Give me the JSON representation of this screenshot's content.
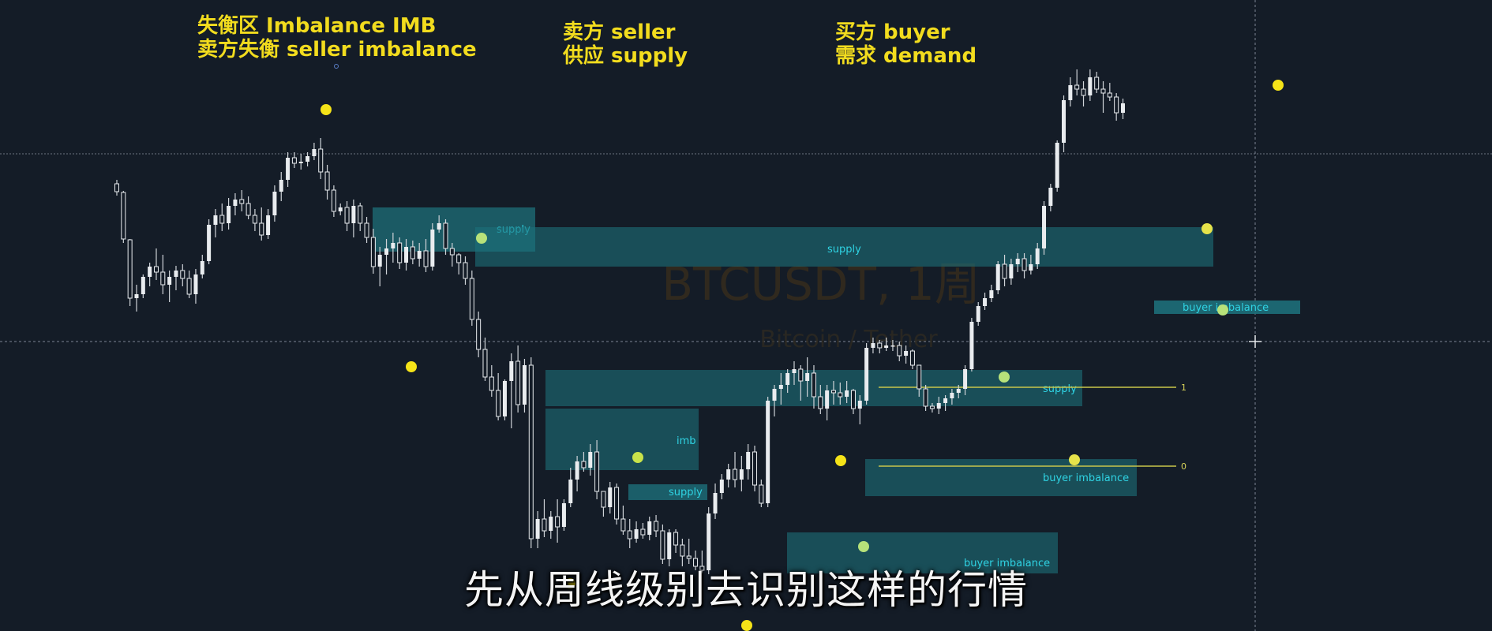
{
  "watermark": {
    "symbol": "BTCUSDT, 1周",
    "description": "Bitcoin / Tether"
  },
  "annotations": {
    "imbalance": {
      "line1": "失衡区 Imbalance IMB",
      "line2": "卖方失衡 seller imbalance"
    },
    "seller": {
      "line1": "卖方  seller",
      "line2": "供应 supply"
    },
    "buyer": {
      "line1": "买方 buyer",
      "line2": "需求 demand"
    }
  },
  "subtitle": "先从周线级别去识别这样的行情",
  "colors": {
    "background": "#141c27",
    "candle": "#e9ecef",
    "wick": "#cfd3d8",
    "zone_fill": "#1d6f7a",
    "zone_label": "#2fd3e3",
    "pivot_yellow": "#f5e318",
    "pivot_green": "#b7e27a",
    "fib_line": "#c9c64a",
    "annotation": "#f2dc1e",
    "crosshair": "#7d8593"
  },
  "zones": [
    {
      "label": "supply"
    },
    {
      "label": "supply"
    },
    {
      "label": "supply"
    },
    {
      "label": "imb"
    },
    {
      "label": "supply"
    },
    {
      "label": "buyer imbalance"
    },
    {
      "label": "buyer imbalance"
    },
    {
      "label": "buyer imbalance"
    }
  ],
  "fib_levels": [
    {
      "label": "1"
    },
    {
      "label": "0"
    }
  ],
  "chart_data": {
    "type": "candlestick",
    "note_units": "relative price units (no price axis visible)",
    "candles": [
      [
        200,
        205,
        185,
        190
      ],
      [
        189,
        191,
        125,
        130
      ],
      [
        129,
        130,
        45,
        55
      ],
      [
        55,
        72,
        38,
        60
      ],
      [
        60,
        85,
        55,
        82
      ],
      [
        82,
        100,
        70,
        95
      ],
      [
        95,
        118,
        78,
        88
      ],
      [
        88,
        110,
        60,
        72
      ],
      [
        72,
        90,
        50,
        82
      ],
      [
        82,
        96,
        65,
        90
      ],
      [
        90,
        98,
        70,
        80
      ],
      [
        80,
        90,
        55,
        60
      ],
      [
        60,
        92,
        48,
        85
      ],
      [
        85,
        110,
        80,
        102
      ],
      [
        102,
        155,
        98,
        148
      ],
      [
        148,
        168,
        132,
        160
      ],
      [
        160,
        175,
        140,
        150
      ],
      [
        150,
        182,
        142,
        172
      ],
      [
        172,
        188,
        160,
        180
      ],
      [
        180,
        192,
        165,
        175
      ],
      [
        175,
        184,
        155,
        160
      ],
      [
        160,
        168,
        140,
        150
      ],
      [
        150,
        170,
        128,
        135
      ],
      [
        135,
        168,
        130,
        160
      ],
      [
        160,
        198,
        152,
        190
      ],
      [
        190,
        215,
        178,
        205
      ],
      [
        205,
        240,
        196,
        233
      ],
      [
        233,
        240,
        220,
        226
      ],
      [
        226,
        238,
        218,
        228
      ],
      [
        228,
        240,
        222,
        235
      ],
      [
        235,
        252,
        230,
        244
      ],
      [
        244,
        258,
        206,
        215
      ],
      [
        215,
        224,
        180,
        192
      ],
      [
        192,
        198,
        158,
        165
      ],
      [
        165,
        175,
        160,
        170
      ],
      [
        170,
        178,
        140,
        150
      ],
      [
        150,
        180,
        132,
        172
      ],
      [
        172,
        176,
        140,
        150
      ],
      [
        150,
        158,
        125,
        132
      ],
      [
        132,
        143,
        86,
        95
      ],
      [
        95,
        120,
        70,
        110
      ],
      [
        110,
        130,
        85,
        118
      ],
      [
        118,
        138,
        100,
        125
      ],
      [
        125,
        132,
        92,
        100
      ],
      [
        100,
        130,
        90,
        120
      ],
      [
        120,
        128,
        98,
        105
      ],
      [
        105,
        125,
        95,
        115
      ],
      [
        115,
        130,
        88,
        95
      ],
      [
        95,
        150,
        90,
        142
      ],
      [
        142,
        160,
        138,
        150
      ],
      [
        150,
        155,
        110,
        118
      ],
      [
        118,
        125,
        95,
        110
      ],
      [
        110,
        112,
        85,
        100
      ],
      [
        100,
        108,
        72,
        80
      ],
      [
        80,
        90,
        20,
        28
      ],
      [
        28,
        38,
        -20,
        -10
      ],
      [
        -10,
        5,
        -50,
        -45
      ],
      [
        -45,
        -30,
        -70,
        -62
      ],
      [
        -62,
        -40,
        -100,
        -95
      ],
      [
        -95,
        -48,
        -100,
        -50
      ],
      [
        -50,
        -15,
        -110,
        -25
      ],
      [
        -25,
        -5,
        -90,
        -80
      ],
      [
        -80,
        -22,
        -90,
        -30
      ],
      [
        -30,
        -20,
        -262,
        -250
      ],
      [
        -250,
        -215,
        -262,
        -225
      ],
      [
        -225,
        -200,
        -248,
        -240
      ],
      [
        -240,
        -215,
        -250,
        -222
      ],
      [
        -222,
        -200,
        -255,
        -235
      ],
      [
        -235,
        -200,
        -240,
        -205
      ],
      [
        -205,
        -160,
        -210,
        -175
      ],
      [
        -175,
        -145,
        -190,
        -152
      ],
      [
        -152,
        -140,
        -165,
        -160
      ],
      [
        -160,
        -130,
        -170,
        -140
      ],
      [
        -140,
        -125,
        -200,
        -190
      ],
      [
        -190,
        -190,
        -222,
        -210
      ],
      [
        -210,
        -178,
        -218,
        -185
      ],
      [
        -185,
        -180,
        -232,
        -225
      ],
      [
        -225,
        -208,
        -245,
        -240
      ],
      [
        -240,
        -225,
        -262,
        -250
      ],
      [
        -250,
        -228,
        -255,
        -238
      ],
      [
        -238,
        -230,
        -250,
        -245
      ],
      [
        -245,
        -222,
        -252,
        -228
      ],
      [
        -228,
        -220,
        -248,
        -240
      ],
      [
        -240,
        -232,
        -282,
        -276
      ],
      [
        -276,
        -238,
        -285,
        -242
      ],
      [
        -242,
        -238,
        -268,
        -258
      ],
      [
        -258,
        -250,
        -285,
        -272
      ],
      [
        -272,
        -250,
        -282,
        -275
      ],
      [
        -275,
        -265,
        -290,
        -285
      ],
      [
        -285,
        -265,
        -295,
        -290
      ],
      [
        -290,
        -210,
        -295,
        -218
      ],
      [
        -218,
        -180,
        -225,
        -192
      ],
      [
        -192,
        -168,
        -200,
        -175
      ],
      [
        -175,
        -155,
        -185,
        -162
      ],
      [
        -162,
        -140,
        -185,
        -175
      ],
      [
        -175,
        -145,
        -190,
        -162
      ],
      [
        -162,
        -130,
        -175,
        -140
      ],
      [
        -140,
        -132,
        -190,
        -182
      ],
      [
        -182,
        -175,
        -210,
        -205
      ],
      [
        -205,
        -70,
        -210,
        -75
      ],
      [
        -75,
        -55,
        -95,
        -60
      ],
      [
        -60,
        -40,
        -80,
        -55
      ],
      [
        -55,
        -35,
        -65,
        -40
      ],
      [
        -40,
        -25,
        -55,
        -35
      ],
      [
        -35,
        -30,
        -75,
        -50
      ],
      [
        -50,
        -20,
        -70,
        -40
      ],
      [
        -40,
        -30,
        -85,
        -70
      ],
      [
        -70,
        -55,
        -92,
        -85
      ],
      [
        -85,
        -55,
        -100,
        -62
      ],
      [
        -62,
        -50,
        -80,
        -65
      ],
      [
        -65,
        -52,
        -80,
        -70
      ],
      [
        -70,
        -50,
        -78,
        -62
      ],
      [
        -62,
        -60,
        -92,
        -85
      ],
      [
        -85,
        -68,
        -105,
        -75
      ],
      [
        -75,
        -2,
        -80,
        -8
      ],
      [
        -8,
        5,
        -15,
        -2
      ],
      [
        -2,
        2,
        -15,
        -8
      ],
      [
        -8,
        5,
        -12,
        -5
      ],
      [
        -5,
        2,
        -12,
        -5
      ],
      [
        -5,
        0,
        -25,
        -18
      ],
      [
        -18,
        -5,
        -28,
        -12
      ],
      [
        -12,
        -10,
        -35,
        -30
      ],
      [
        -30,
        -30,
        -70,
        -60
      ],
      [
        -60,
        -55,
        -88,
        -82
      ],
      [
        -82,
        -78,
        -90,
        -85
      ],
      [
        -85,
        -70,
        -92,
        -78
      ],
      [
        -78,
        -68,
        -88,
        -72
      ],
      [
        -72,
        -60,
        -80,
        -65
      ],
      [
        -65,
        -55,
        -72,
        -60
      ],
      [
        -60,
        -30,
        -68,
        -35
      ],
      [
        -35,
        30,
        -38,
        25
      ],
      [
        25,
        50,
        20,
        45
      ],
      [
        45,
        62,
        40,
        55
      ],
      [
        55,
        72,
        50,
        65
      ],
      [
        65,
        102,
        60,
        98
      ],
      [
        98,
        110,
        70,
        80
      ],
      [
        80,
        105,
        72,
        98
      ],
      [
        98,
        112,
        88,
        105
      ],
      [
        105,
        112,
        80,
        90
      ],
      [
        90,
        110,
        85,
        98
      ],
      [
        98,
        125,
        92,
        118
      ],
      [
        118,
        178,
        110,
        172
      ],
      [
        172,
        200,
        165,
        195
      ],
      [
        195,
        255,
        190,
        252
      ],
      [
        252,
        312,
        240,
        306
      ],
      [
        306,
        335,
        298,
        325
      ],
      [
        325,
        345,
        312,
        320
      ],
      [
        320,
        330,
        298,
        312
      ],
      [
        312,
        345,
        305,
        335
      ],
      [
        335,
        342,
        315,
        320
      ],
      [
        320,
        330,
        290,
        315
      ],
      [
        315,
        328,
        305,
        310
      ],
      [
        310,
        315,
        280,
        290
      ],
      [
        290,
        308,
        282,
        302
      ]
    ]
  }
}
